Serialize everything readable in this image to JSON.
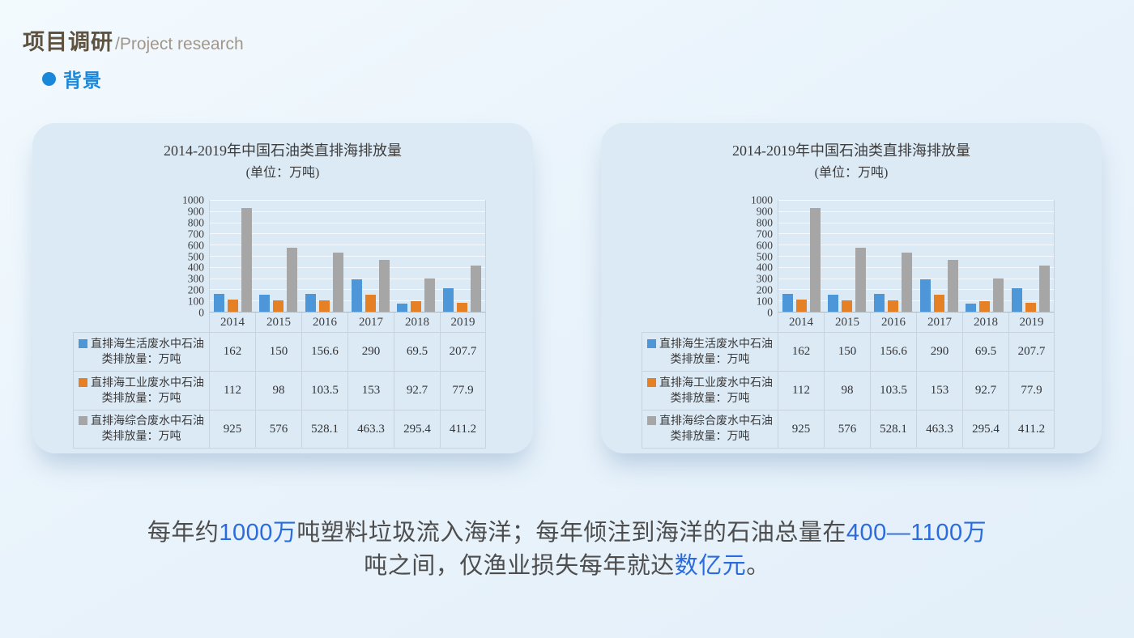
{
  "header": {
    "title_zh": "项目调研",
    "title_en": "/Project research",
    "title_color": "#5e5240",
    "subtitle_color": "#a2968b"
  },
  "section": {
    "label": "背景",
    "color": "#1b87d9"
  },
  "chart_data": {
    "type": "bar",
    "title": "2014-2019年中国石油类直排海排放量",
    "subtitle": "(单位：万吨)",
    "categories": [
      "2014",
      "2015",
      "2016",
      "2017",
      "2018",
      "2019"
    ],
    "series": [
      {
        "name": "直排海生活废水中石油类排放量：万吨",
        "color": "#4d96d8",
        "values": [
          162,
          150,
          156.6,
          290,
          69.5,
          207.7
        ]
      },
      {
        "name": "直排海工业废水中石油类排放量：万吨",
        "color": "#e58025",
        "values": [
          112,
          98,
          103.5,
          153,
          92.7,
          77.9
        ]
      },
      {
        "name": "直排海综合废水中石油类排放量：万吨",
        "color": "#a6a6a6",
        "values": [
          925,
          576,
          528.1,
          463.3,
          295.4,
          411.2
        ]
      }
    ],
    "yticks": [
      1000,
      900,
      800,
      700,
      600,
      500,
      400,
      300,
      200,
      100,
      0
    ],
    "ylim": [
      0,
      1000
    ],
    "grid": true,
    "legend_position": "data-table-left",
    "duplicated_cards": 2
  },
  "footer": {
    "text_color": "#4d4d4d",
    "highlight_color": "#2a6bdf",
    "lines": [
      [
        {
          "text": "每年约",
          "highlight": false
        },
        {
          "text": "1000万",
          "highlight": true
        },
        {
          "text": "吨塑料垃圾流入海洋；每年倾注到海洋的石油总量在",
          "highlight": false
        },
        {
          "text": "400—1100万",
          "highlight": true
        }
      ],
      [
        {
          "text": "吨之间，仅渔业损失每年就达",
          "highlight": false
        },
        {
          "text": "数亿元",
          "highlight": true
        },
        {
          "text": "。",
          "highlight": false
        }
      ]
    ]
  }
}
